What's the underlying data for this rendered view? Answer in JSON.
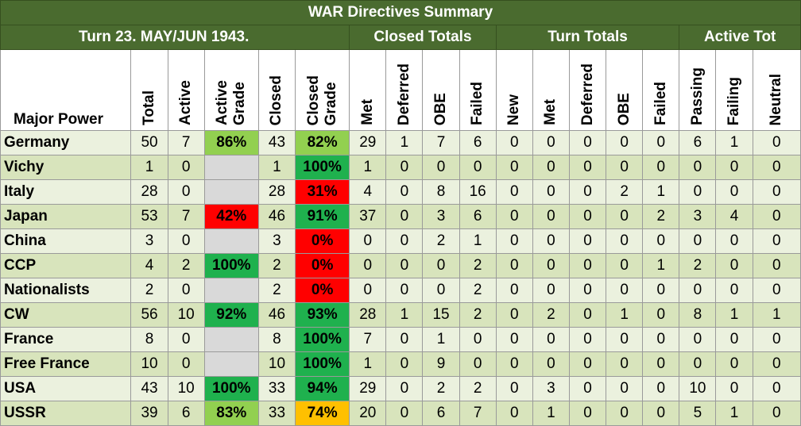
{
  "title": "WAR Directives Summary",
  "turn_label": "Turn 23.  MAY/JUN 1943.",
  "groups": {
    "closed": "Closed Totals",
    "turn": "Turn Totals",
    "active": "Active Tot"
  },
  "headers": {
    "power": "Major Power",
    "total": "Total",
    "active": "Active",
    "active_grade": [
      "Active",
      "Grade"
    ],
    "closed": "Closed",
    "closed_grade": [
      "Closed",
      "Grade"
    ],
    "met": "Met",
    "deferred": "Deferred",
    "obe": "OBE",
    "failed": "Failed",
    "new": "New",
    "turn_met": "Met",
    "turn_deferred": "Deferred",
    "turn_obe": "OBE",
    "turn_failed": "Failed",
    "passing": "Passing",
    "failing": "Failing",
    "neutral": "Neutral"
  },
  "colors": {
    "header_green": "#4a6b2f",
    "grade_dark_green": "#1fb14e",
    "grade_light_green": "#92d050",
    "grade_red": "#ff0000",
    "grade_orange": "#ffc000",
    "grade_empty": "#d9d9d9"
  },
  "rows": [
    {
      "name": "Germany",
      "total": "50",
      "active": "7",
      "active_grade": "86%",
      "ag_color": "g-light",
      "closed": "43",
      "closed_grade": "82%",
      "cg_color": "g-light",
      "met": "29",
      "deferred": "1",
      "obe": "7",
      "failed": "6",
      "t_new": "0",
      "t_met": "0",
      "t_deferred": "0",
      "t_obe": "0",
      "t_failed": "0",
      "passing": "6",
      "failing": "1",
      "neutral": "0"
    },
    {
      "name": "Vichy",
      "total": "1",
      "active": "0",
      "active_grade": "",
      "ag_color": "g-grey",
      "closed": "1",
      "closed_grade": "100%",
      "cg_color": "g-dark",
      "met": "1",
      "deferred": "0",
      "obe": "0",
      "failed": "0",
      "t_new": "0",
      "t_met": "0",
      "t_deferred": "0",
      "t_obe": "0",
      "t_failed": "0",
      "passing": "0",
      "failing": "0",
      "neutral": "0"
    },
    {
      "name": "Italy",
      "total": "28",
      "active": "0",
      "active_grade": "",
      "ag_color": "g-grey",
      "closed": "28",
      "closed_grade": "31%",
      "cg_color": "g-red",
      "met": "4",
      "deferred": "0",
      "obe": "8",
      "failed": "16",
      "t_new": "0",
      "t_met": "0",
      "t_deferred": "0",
      "t_obe": "2",
      "t_failed": "1",
      "passing": "0",
      "failing": "0",
      "neutral": "0"
    },
    {
      "name": "Japan",
      "total": "53",
      "active": "7",
      "active_grade": "42%",
      "ag_color": "g-red",
      "closed": "46",
      "closed_grade": "91%",
      "cg_color": "g-dark",
      "met": "37",
      "deferred": "0",
      "obe": "3",
      "failed": "6",
      "t_new": "0",
      "t_met": "0",
      "t_deferred": "0",
      "t_obe": "0",
      "t_failed": "2",
      "passing": "3",
      "failing": "4",
      "neutral": "0"
    },
    {
      "name": "China",
      "total": "3",
      "active": "0",
      "active_grade": "",
      "ag_color": "g-grey",
      "closed": "3",
      "closed_grade": "0%",
      "cg_color": "g-red",
      "met": "0",
      "deferred": "0",
      "obe": "2",
      "failed": "1",
      "t_new": "0",
      "t_met": "0",
      "t_deferred": "0",
      "t_obe": "0",
      "t_failed": "0",
      "passing": "0",
      "failing": "0",
      "neutral": "0"
    },
    {
      "name": "CCP",
      "total": "4",
      "active": "2",
      "active_grade": "100%",
      "ag_color": "g-dark",
      "closed": "2",
      "closed_grade": "0%",
      "cg_color": "g-red",
      "met": "0",
      "deferred": "0",
      "obe": "0",
      "failed": "2",
      "t_new": "0",
      "t_met": "0",
      "t_deferred": "0",
      "t_obe": "0",
      "t_failed": "1",
      "passing": "2",
      "failing": "0",
      "neutral": "0"
    },
    {
      "name": "Nationalists",
      "total": "2",
      "active": "0",
      "active_grade": "",
      "ag_color": "g-grey",
      "closed": "2",
      "closed_grade": "0%",
      "cg_color": "g-red",
      "met": "0",
      "deferred": "0",
      "obe": "0",
      "failed": "2",
      "t_new": "0",
      "t_met": "0",
      "t_deferred": "0",
      "t_obe": "0",
      "t_failed": "0",
      "passing": "0",
      "failing": "0",
      "neutral": "0"
    },
    {
      "name": "CW",
      "total": "56",
      "active": "10",
      "active_grade": "92%",
      "ag_color": "g-dark",
      "closed": "46",
      "closed_grade": "93%",
      "cg_color": "g-dark",
      "met": "28",
      "deferred": "1",
      "obe": "15",
      "failed": "2",
      "t_new": "0",
      "t_met": "2",
      "t_deferred": "0",
      "t_obe": "1",
      "t_failed": "0",
      "passing": "8",
      "failing": "1",
      "neutral": "1"
    },
    {
      "name": "France",
      "total": "8",
      "active": "0",
      "active_grade": "",
      "ag_color": "g-grey",
      "closed": "8",
      "closed_grade": "100%",
      "cg_color": "g-dark",
      "met": "7",
      "deferred": "0",
      "obe": "1",
      "failed": "0",
      "t_new": "0",
      "t_met": "0",
      "t_deferred": "0",
      "t_obe": "0",
      "t_failed": "0",
      "passing": "0",
      "failing": "0",
      "neutral": "0"
    },
    {
      "name": "Free France",
      "total": "10",
      "active": "0",
      "active_grade": "",
      "ag_color": "g-grey",
      "closed": "10",
      "closed_grade": "100%",
      "cg_color": "g-dark",
      "met": "1",
      "deferred": "0",
      "obe": "9",
      "failed": "0",
      "t_new": "0",
      "t_met": "0",
      "t_deferred": "0",
      "t_obe": "0",
      "t_failed": "0",
      "passing": "0",
      "failing": "0",
      "neutral": "0"
    },
    {
      "name": "USA",
      "total": "43",
      "active": "10",
      "active_grade": "100%",
      "ag_color": "g-dark",
      "closed": "33",
      "closed_grade": "94%",
      "cg_color": "g-dark",
      "met": "29",
      "deferred": "0",
      "obe": "2",
      "failed": "2",
      "t_new": "0",
      "t_met": "3",
      "t_deferred": "0",
      "t_obe": "0",
      "t_failed": "0",
      "passing": "10",
      "failing": "0",
      "neutral": "0"
    },
    {
      "name": "USSR",
      "total": "39",
      "active": "6",
      "active_grade": "83%",
      "ag_color": "g-light",
      "closed": "33",
      "closed_grade": "74%",
      "cg_color": "g-orange",
      "met": "20",
      "deferred": "0",
      "obe": "6",
      "failed": "7",
      "t_new": "0",
      "t_met": "1",
      "t_deferred": "0",
      "t_obe": "0",
      "t_failed": "0",
      "passing": "5",
      "failing": "1",
      "neutral": "0"
    }
  ]
}
